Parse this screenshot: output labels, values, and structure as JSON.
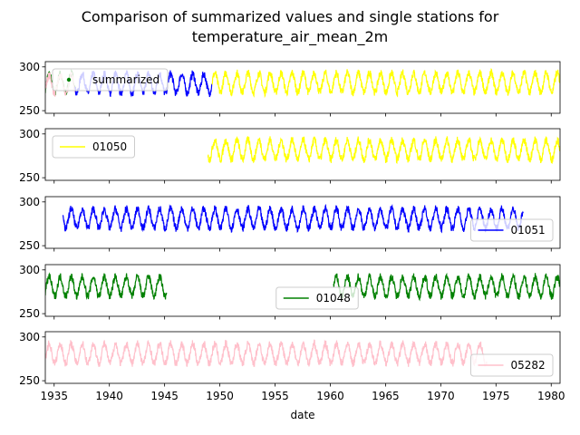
{
  "chart_data": {
    "type": "line",
    "title_line1": "Comparison of summarized values and single stations for",
    "title_line2": "temperature_air_mean_2m",
    "xlabel": "date",
    "xlim": [
      1934.2,
      1980.8
    ],
    "ylim": [
      247,
      306
    ],
    "yticks": [
      250,
      300
    ],
    "xticks": [
      1935,
      1940,
      1945,
      1950,
      1955,
      1960,
      1965,
      1970,
      1975,
      1980
    ],
    "panels": [
      {
        "legend_label": "summarized",
        "legend_marker": "dot",
        "legend_position": "upper-left",
        "segments": [
          {
            "color": "#008000",
            "start": 1934.2,
            "end": 1936.9,
            "mean": 281,
            "amp": 11
          },
          {
            "color": "#ffc0cb",
            "start": 1934.2,
            "end": 1936.9,
            "mean": 280,
            "amp": 10
          },
          {
            "color": "#0000ff",
            "start": 1936.9,
            "end": 1949.3,
            "mean": 281,
            "amp": 11
          },
          {
            "color": "#ffff00",
            "start": 1949.3,
            "end": 1980.8,
            "mean": 282,
            "amp": 11
          }
        ]
      },
      {
        "legend_label": "01050",
        "legend_position": "upper-left",
        "segments": [
          {
            "color": "#ffff00",
            "start": 1948.9,
            "end": 1980.8,
            "mean": 282,
            "amp": 11
          }
        ]
      },
      {
        "legend_label": "01051",
        "legend_position": "lower-right",
        "segments": [
          {
            "color": "#0000ff",
            "start": 1935.8,
            "end": 1977.5,
            "mean": 281,
            "amp": 11
          }
        ]
      },
      {
        "legend_label": "01048",
        "legend_position": "lower-center",
        "segments": [
          {
            "color": "#008000",
            "start": 1934.2,
            "end": 1945.2,
            "mean": 281,
            "amp": 11
          },
          {
            "color": "#008000",
            "start": 1960.3,
            "end": 1980.8,
            "mean": 281,
            "amp": 11
          }
        ]
      },
      {
        "legend_label": "05282",
        "legend_position": "lower-right",
        "segments": [
          {
            "color": "#ffc0cb",
            "start": 1934.2,
            "end": 1974.2,
            "mean": 281,
            "amp": 11
          }
        ]
      }
    ]
  }
}
